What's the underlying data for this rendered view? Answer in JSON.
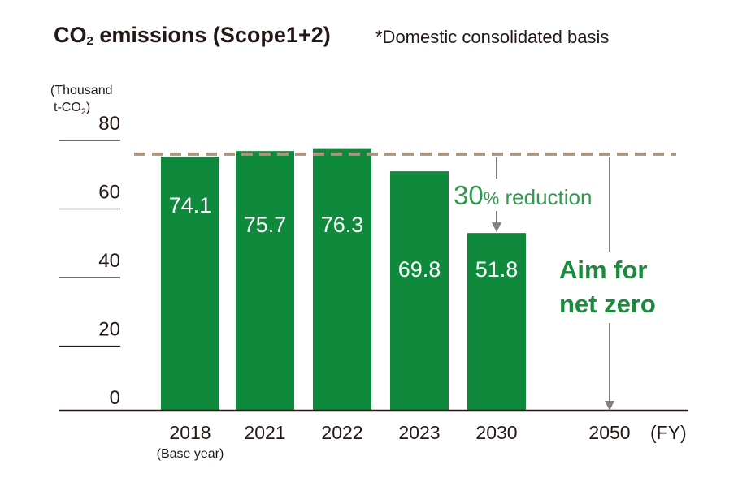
{
  "title": {
    "main": "CO",
    "sub": "2",
    "rest": " emissions (Scope1+2)",
    "note": "*Domestic consolidated basis"
  },
  "colors": {
    "bar": "#0f8a3c",
    "accent_text": "#1a8a3c",
    "dashed_line": "#a89582",
    "axis": "#231815",
    "arrow": "#808080"
  },
  "chart_data": {
    "type": "bar",
    "unit_label_line1": "(Thousand",
    "unit_label_line2": "t-CO",
    "unit_label_sub": "2",
    "unit_label_close": ")",
    "x_axis_unit": "(FY)",
    "categories": [
      "2018",
      "2021",
      "2022",
      "2023",
      "2030",
      "2050"
    ],
    "category_sublabels": [
      "(Base year)",
      "",
      "",
      "",
      "",
      ""
    ],
    "values": [
      74.1,
      75.7,
      76.3,
      69.8,
      51.8,
      null
    ],
    "value_labels": [
      "74.1",
      "75.7",
      "76.3",
      "69.8",
      "51.8",
      ""
    ],
    "y_ticks": [
      "0",
      "20",
      "40",
      "60",
      "80"
    ],
    "ylim": [
      0,
      80
    ],
    "reference_line": 74.1,
    "annotations": {
      "reduction_number": "30",
      "reduction_percent": "%",
      "reduction_text": " reduction",
      "target_line1": "Aim for",
      "target_line2": "net zero"
    }
  }
}
